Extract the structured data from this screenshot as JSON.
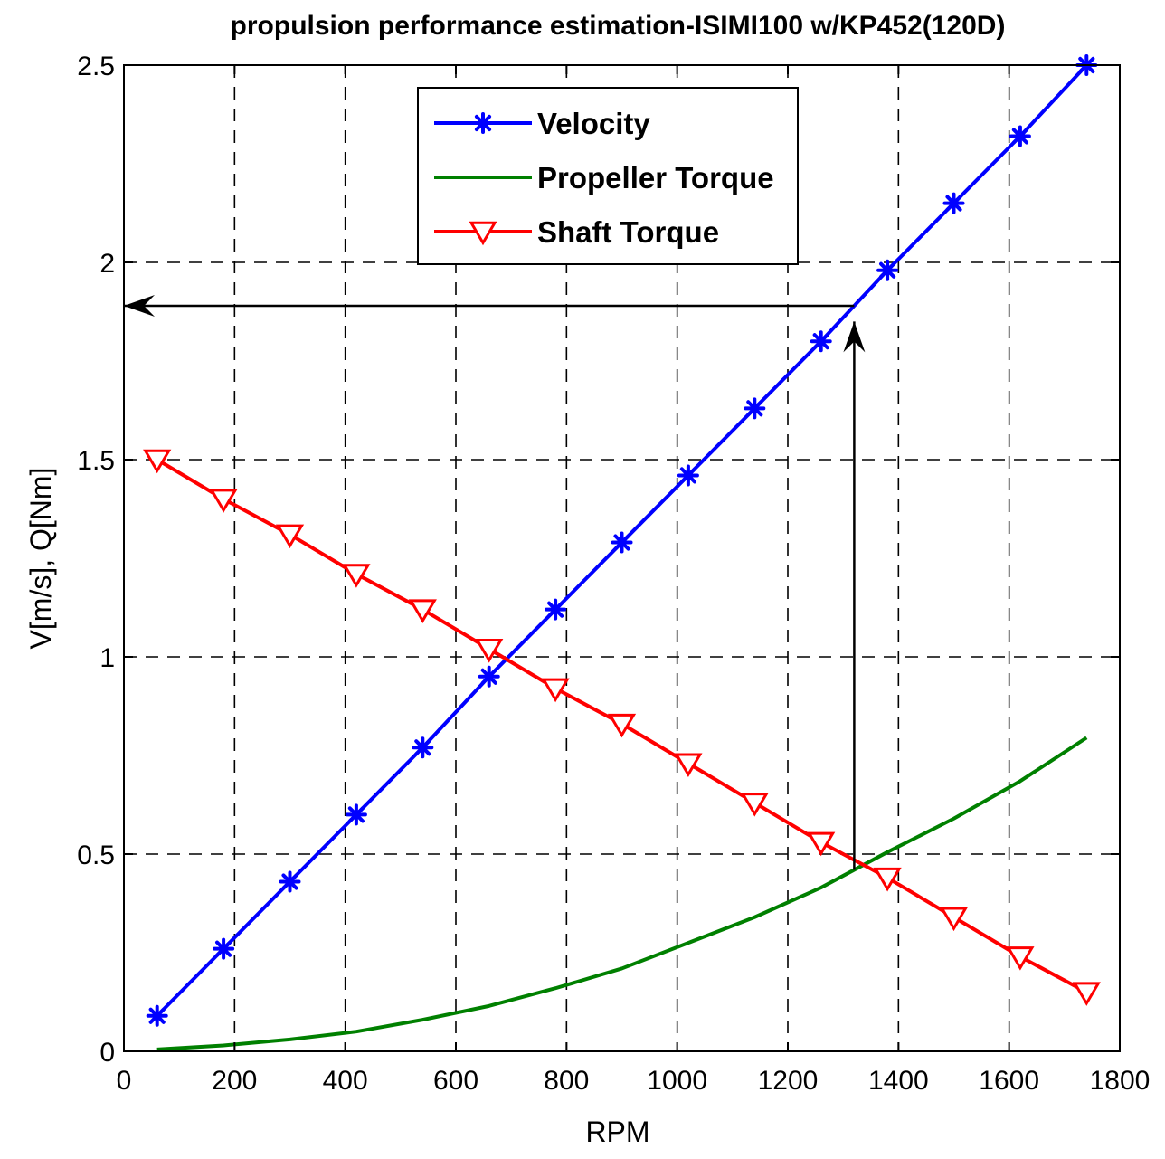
{
  "chart_data": {
    "type": "line",
    "title": "propulsion performance estimation-ISIMI100 w/KP452(120D)",
    "xlabel": "RPM",
    "ylabel": "V[m/s],  Q[Nm]",
    "xlim": [
      0,
      1800
    ],
    "ylim": [
      0,
      2.5
    ],
    "xticks": [
      "0",
      "200",
      "400",
      "600",
      "800",
      "1000",
      "1200",
      "1400",
      "1600",
      "1800"
    ],
    "yticks": [
      "0",
      "0.5",
      "1",
      "1.5",
      "2",
      "2.5"
    ],
    "grid": true,
    "legend_position": "top-center",
    "x": [
      60,
      180,
      300,
      420,
      540,
      660,
      780,
      900,
      1020,
      1140,
      1260,
      1380,
      1500,
      1620,
      1740
    ],
    "series": [
      {
        "name": "Velocity",
        "color": "#0000ff",
        "marker": "asterisk",
        "values": [
          0.09,
          0.26,
          0.43,
          0.6,
          0.77,
          0.95,
          1.12,
          1.29,
          1.46,
          1.63,
          1.8,
          1.98,
          2.15,
          2.32,
          2.5
        ]
      },
      {
        "name": "Propeller Torque",
        "color": "#008000",
        "marker": "none",
        "values": [
          0.005,
          0.015,
          0.03,
          0.05,
          0.08,
          0.115,
          0.16,
          0.21,
          0.275,
          0.34,
          0.415,
          0.505,
          0.59,
          0.685,
          0.795
        ]
      },
      {
        "name": "Shaft Torque",
        "color": "#ff0000",
        "marker": "triangle-down",
        "values": [
          1.5,
          1.4,
          1.31,
          1.21,
          1.12,
          1.02,
          0.92,
          0.83,
          0.73,
          0.63,
          0.53,
          0.44,
          0.34,
          0.24,
          0.15
        ]
      }
    ],
    "annotations": [
      {
        "type": "arrow",
        "from": [
          1320,
          0.46
        ],
        "to": [
          1320,
          1.85
        ]
      },
      {
        "type": "arrow",
        "from": [
          1320,
          1.89
        ],
        "to": [
          0,
          1.89
        ]
      }
    ]
  }
}
